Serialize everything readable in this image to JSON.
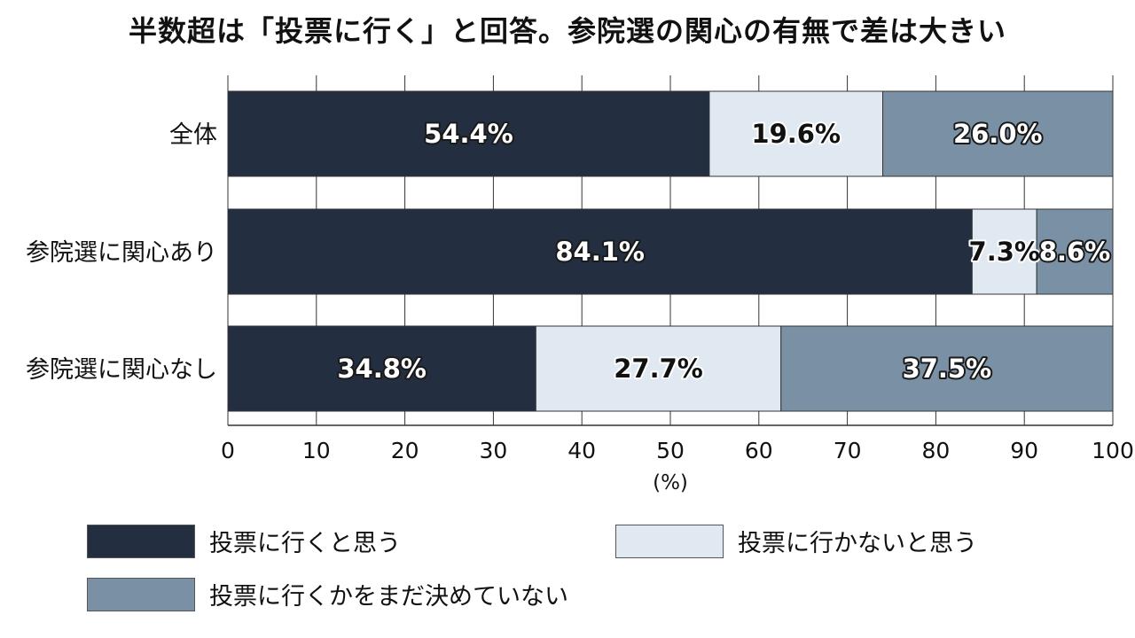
{
  "chart_data": {
    "type": "bar",
    "orientation": "horizontal",
    "stacked": true,
    "title": "半数超は「投票に行く」と回答。参院選の関心の有無で差は大きい",
    "categories": [
      "全体",
      "参院選に関心あり",
      "参院選に関心なし"
    ],
    "series": [
      {
        "name": "投票に行くと思う",
        "values": [
          54.4,
          84.1,
          34.8
        ],
        "labels": [
          "54.4%",
          "84.1%",
          "34.8%"
        ],
        "color": "#232e40"
      },
      {
        "name": "投票に行かないと思う",
        "values": [
          19.6,
          7.3,
          27.7
        ],
        "labels": [
          "19.6%",
          "7.3%",
          "27.7%"
        ],
        "color": "#e0e9f1"
      },
      {
        "name": "投票に行くかをまだ決めていない",
        "values": [
          26.0,
          8.6,
          37.5
        ],
        "labels": [
          "26.0%",
          "8.6%",
          "37.5%"
        ],
        "color": "#7a90a5"
      }
    ],
    "xlim": [
      0,
      100
    ],
    "xticks": [
      0,
      10,
      20,
      30,
      40,
      50,
      60,
      70,
      80,
      90,
      100
    ],
    "xlabel": "(%)",
    "grid": "vertical",
    "legend_position": "bottom"
  }
}
